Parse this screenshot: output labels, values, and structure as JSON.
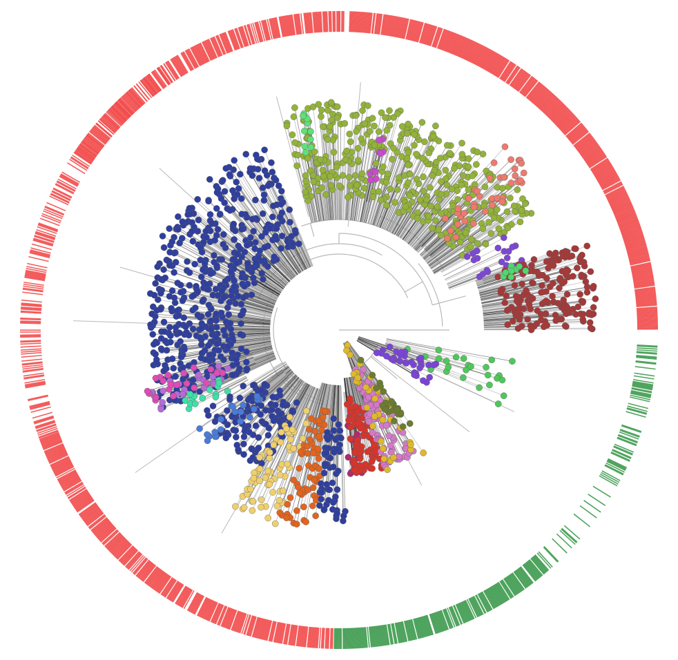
{
  "diagram": {
    "type": "circular-phylogenetic-tree",
    "colors": {
      "outer_ring_primary": "#f24b4b",
      "outer_ring_secondary": "#3d9a4e",
      "branch_gray": "#b8b8b8",
      "branch_dark": "#1a1a1a"
    },
    "outer_ring": [
      {
        "name": "red-arc-a",
        "color": "#f24b4b",
        "start_deg": -88,
        "end_deg": 0,
        "density": 0.95
      },
      {
        "name": "white-gap-a",
        "color": "#ffffff",
        "start_deg": 0,
        "end_deg": 2,
        "density": 0
      },
      {
        "name": "green-arc-sparse-a",
        "color": "#3d9a4e",
        "start_deg": 2,
        "end_deg": 28,
        "density": 0.35
      },
      {
        "name": "green-arc-sparse-b",
        "color": "#3d9a4e",
        "start_deg": 28,
        "end_deg": 48,
        "density": 0.15
      },
      {
        "name": "green-arc-dense",
        "color": "#3d9a4e",
        "start_deg": 48,
        "end_deg": 91,
        "density": 0.9
      },
      {
        "name": "red-arc-b",
        "color": "#f24b4b",
        "start_deg": 91,
        "end_deg": 160,
        "density": 0.85
      },
      {
        "name": "red-arc-c-sparse",
        "color": "#f24b4b",
        "start_deg": 160,
        "end_deg": 210,
        "density": 0.45
      },
      {
        "name": "red-arc-d-sparse",
        "color": "#f24b4b",
        "start_deg": 210,
        "end_deg": 237,
        "density": 0.25
      },
      {
        "name": "white-gap-b",
        "color": "#ffffff",
        "start_deg": 237,
        "end_deg": 210,
        "density": 0
      },
      {
        "name": "red-arc-e",
        "color": "#f24b4b",
        "start_deg": 214,
        "end_deg": 271,
        "density": 0.8
      }
    ],
    "clades": [
      {
        "name": "olive-clade",
        "color": "#93b23a",
        "start_deg": 255,
        "end_deg": 330,
        "inner_r": 190,
        "outer_r": 330,
        "count": 420
      },
      {
        "name": "light-green-accent",
        "color": "#5ee07a",
        "start_deg": 258,
        "end_deg": 262,
        "inner_r": 250,
        "outer_r": 320,
        "count": 10
      },
      {
        "name": "magenta-accent-top",
        "color": "#c84bd0",
        "start_deg": 281,
        "end_deg": 284,
        "inner_r": 220,
        "outer_r": 290,
        "count": 10
      },
      {
        "name": "salmon-clade",
        "color": "#ee7a6e",
        "start_deg": 312,
        "end_deg": 322,
        "inner_r": 200,
        "outer_r": 360,
        "count": 40
      },
      {
        "name": "purple-accent-right",
        "color": "#7d48d4",
        "start_deg": 330,
        "end_deg": 340,
        "inner_r": 200,
        "outer_r": 290,
        "count": 20
      },
      {
        "name": "maroon-clade",
        "color": "#a53939",
        "start_deg": 340,
        "end_deg": 360,
        "inner_r": 240,
        "outer_r": 380,
        "count": 170
      },
      {
        "name": "bright-green-accent",
        "color": "#4fd86e",
        "start_deg": 339,
        "end_deg": 343,
        "inner_r": 250,
        "outer_r": 300,
        "count": 8
      },
      {
        "name": "blue-clade-upper",
        "color": "#2f3f9e",
        "start_deg": 205,
        "end_deg": 248,
        "inner_r": 130,
        "outer_r": 290,
        "count": 230
      },
      {
        "name": "blue-clade-left",
        "color": "#2f3f9e",
        "start_deg": 155,
        "end_deg": 205,
        "inner_r": 130,
        "outer_r": 280,
        "count": 300
      },
      {
        "name": "lilac-accent",
        "color": "#b56cd6",
        "start_deg": 156,
        "end_deg": 164,
        "inner_r": 170,
        "outer_r": 290,
        "count": 25
      },
      {
        "name": "teal-accent",
        "color": "#3fe0a8",
        "start_deg": 150,
        "end_deg": 158,
        "inner_r": 180,
        "outer_r": 250,
        "count": 15
      },
      {
        "name": "pink-accent-left",
        "color": "#e04bb5",
        "start_deg": 158,
        "end_deg": 166,
        "inner_r": 160,
        "outer_r": 300,
        "count": 20
      },
      {
        "name": "blue-clade-lower",
        "color": "#2f3f9e",
        "start_deg": 118,
        "end_deg": 150,
        "inner_r": 120,
        "outer_r": 230,
        "count": 130
      },
      {
        "name": "steel-blue-accent",
        "color": "#4a7bd8",
        "start_deg": 135,
        "end_deg": 145,
        "inner_r": 130,
        "outer_r": 250,
        "count": 20
      },
      {
        "name": "sand-yellow-clade",
        "color": "#efcf6e",
        "start_deg": 108,
        "end_deg": 122,
        "inner_r": 120,
        "outer_r": 300,
        "count": 70
      },
      {
        "name": "orange-clade",
        "color": "#e2641f",
        "start_deg": 97,
        "end_deg": 108,
        "inner_r": 110,
        "outer_r": 290,
        "count": 70
      },
      {
        "name": "navy-clade-bottom",
        "color": "#2f3f9e",
        "start_deg": 88,
        "end_deg": 97,
        "inner_r": 110,
        "outer_r": 280,
        "count": 60
      },
      {
        "name": "crimson-accent",
        "color": "#b02a6e",
        "start_deg": 80,
        "end_deg": 86,
        "inner_r": 120,
        "outer_r": 210,
        "count": 25
      },
      {
        "name": "red-clade",
        "color": "#d9342b",
        "start_deg": 72,
        "end_deg": 84,
        "inner_r": 100,
        "outer_r": 210,
        "count": 90
      },
      {
        "name": "orchid-clade",
        "color": "#d479c8",
        "start_deg": 58,
        "end_deg": 72,
        "inner_r": 60,
        "outer_r": 210,
        "count": 90
      },
      {
        "name": "gold-clade",
        "color": "#e0b92b",
        "start_deg": 55,
        "end_deg": 72,
        "inner_r": 20,
        "outer_r": 220,
        "count": 40
      },
      {
        "name": "olive-dark-accent",
        "color": "#6b7d2e",
        "start_deg": 52,
        "end_deg": 60,
        "inner_r": 50,
        "outer_r": 170,
        "count": 25
      },
      {
        "name": "green-clade-right",
        "color": "#50c75c",
        "start_deg": 10,
        "end_deg": 25,
        "inner_r": 100,
        "outer_r": 270,
        "count": 25
      },
      {
        "name": "violet-clade-right",
        "color": "#7b44d8",
        "start_deg": 18,
        "end_deg": 32,
        "inner_r": 60,
        "outer_r": 150,
        "count": 35
      }
    ]
  }
}
